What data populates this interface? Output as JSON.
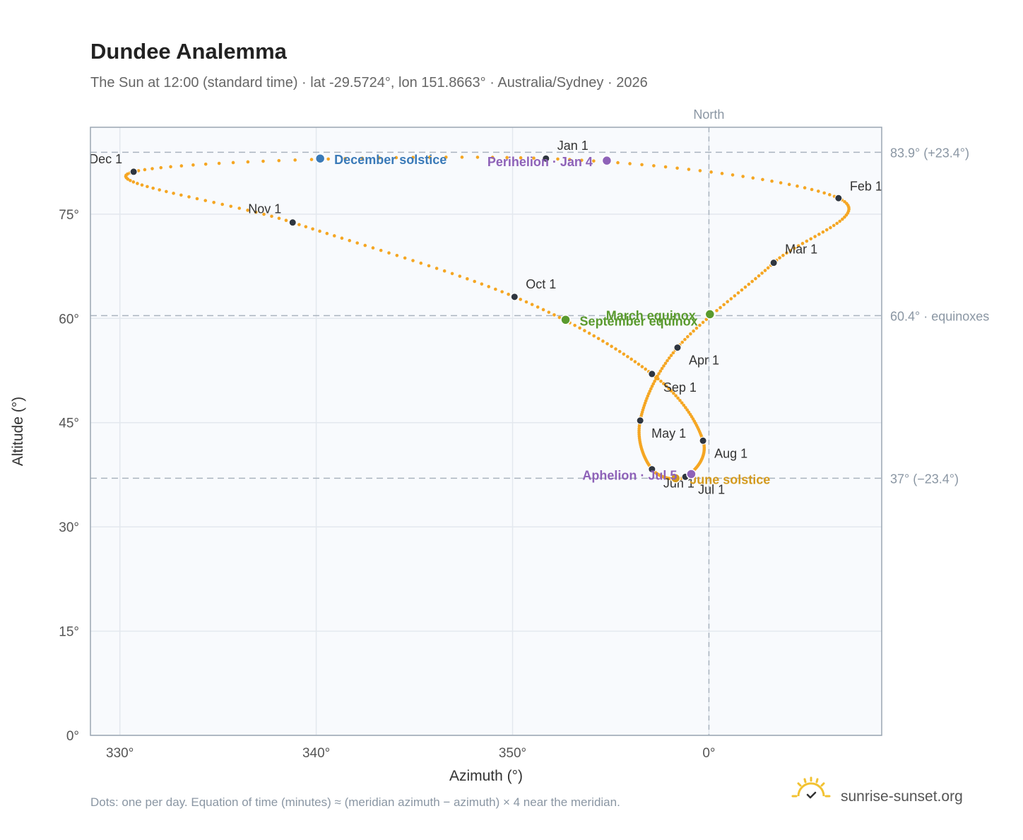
{
  "colors": {
    "curve": "#f5a623",
    "month_dot": "#2f3640",
    "december_solstice": "#3a7ab8",
    "june_solstice": "#d49a1e",
    "equinox": "#5a9a2e",
    "apsis": "#8e62b8",
    "reference_line": "#aab4bf",
    "grid": "#e3e8ee",
    "plot_background": "#f8fafd",
    "frame": "#9aa6b2"
  },
  "brand": {
    "text": "sunrise-sunset.org",
    "icon": "sun-check-icon"
  },
  "chart_data": {
    "type": "scatter",
    "title": "Dundee Analemma",
    "subtitle": "The Sun at 12:00 (standard time) · lat -29.5724°, lon 151.8663° · Australia/Sydney · 2026",
    "xlabel": "Azimuth (°)",
    "ylabel": "Altitude (°)",
    "xlim": [
      -31.5,
      8.8
    ],
    "ylim": [
      0,
      87.5
    ],
    "x_ticks": [
      {
        "value": -30,
        "label": "330°"
      },
      {
        "value": -20,
        "label": "340°"
      },
      {
        "value": -10,
        "label": "350°"
      },
      {
        "value": 0,
        "label": "0°"
      }
    ],
    "y_ticks": [
      {
        "value": 0,
        "label": "0°"
      },
      {
        "value": 15,
        "label": "15°"
      },
      {
        "value": 30,
        "label": "30°"
      },
      {
        "value": 45,
        "label": "45°"
      },
      {
        "value": 60,
        "label": "60°"
      },
      {
        "value": 75,
        "label": "75°"
      }
    ],
    "grid": true,
    "meridian": {
      "x": 0,
      "label": "North"
    },
    "reference_lines": [
      {
        "y": 83.9,
        "label": "83.9° (+23.4°)"
      },
      {
        "y": 60.4,
        "label": "60.4° · equinoxes"
      },
      {
        "y": 37.0,
        "label": "37° (−23.4°)"
      }
    ],
    "months": [
      {
        "label": "Jan 1",
        "az": -8.3,
        "alt": 83.0
      },
      {
        "label": "Feb 1",
        "az": 6.6,
        "alt": 77.3
      },
      {
        "label": "Mar 1",
        "az": 3.3,
        "alt": 68.0
      },
      {
        "label": "Apr 1",
        "az": -1.6,
        "alt": 55.8
      },
      {
        "label": "May 1",
        "az": -3.5,
        "alt": 45.3
      },
      {
        "label": "Jun 1",
        "az": -2.9,
        "alt": 38.3
      },
      {
        "label": "Jul 1",
        "az": -1.2,
        "alt": 37.2
      },
      {
        "label": "Aug 1",
        "az": -0.3,
        "alt": 42.4
      },
      {
        "label": "Sep 1",
        "az": -2.9,
        "alt": 52.0
      },
      {
        "label": "Oct 1",
        "az": -9.9,
        "alt": 63.1
      },
      {
        "label": "Nov 1",
        "az": -21.2,
        "alt": 73.8
      },
      {
        "label": "Dec 1",
        "az": -29.3,
        "alt": 81.1
      }
    ],
    "events": [
      {
        "label": "December solstice",
        "az": -19.8,
        "alt": 83.0,
        "color_key": "december_solstice"
      },
      {
        "label": "Perihelion · Jan 4",
        "az": -5.2,
        "alt": 82.7,
        "color_key": "apsis"
      },
      {
        "label": "March equinox",
        "az": 0.05,
        "alt": 60.6,
        "color_key": "equinox"
      },
      {
        "label": "September equinox",
        "az": -7.3,
        "alt": 59.8,
        "color_key": "equinox"
      },
      {
        "label": "June solstice",
        "az": -1.7,
        "alt": 37.0,
        "color_key": "june_solstice"
      },
      {
        "label": "Aphelion · Jul 5",
        "az": -0.9,
        "alt": 37.6,
        "color_key": "apsis"
      }
    ],
    "footnote": "Dots: one per day. Equation of time (minutes) ≈ (meridian azimuth − azimuth) × 4 near the meridian."
  }
}
